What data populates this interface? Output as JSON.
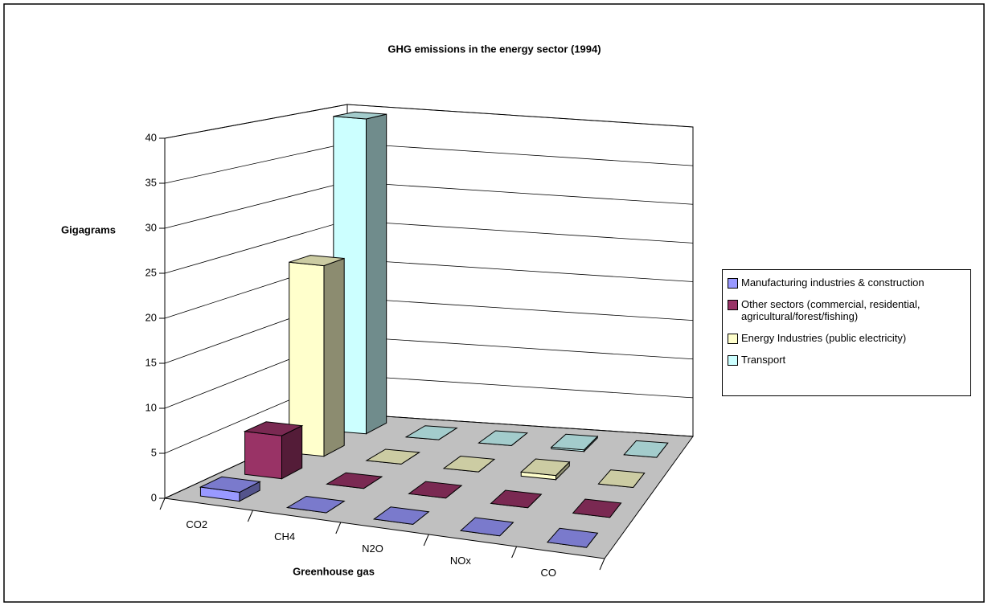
{
  "chart_data": {
    "type": "bar3d",
    "title": "GHG emissions in the energy sector (1994)",
    "y_label": "Gigagrams",
    "x_label": "Greenhouse gas",
    "categories": [
      "CO2",
      "CH4",
      "N2O",
      "NOx",
      "CO"
    ],
    "series": [
      {
        "name": "Manufacturing industries & construction",
        "color": "#9999ff",
        "values": [
          1,
          0,
          0,
          0,
          0
        ]
      },
      {
        "name": "Other sectors (commercial, residential, agricultural/forest/fishing)",
        "color": "#993366",
        "values": [
          5,
          0,
          0,
          0,
          0
        ]
      },
      {
        "name": "Energy Industries (public electricity)",
        "color": "#ffffcc",
        "values": [
          23,
          0,
          0,
          0.5,
          0
        ]
      },
      {
        "name": "Transport",
        "color": "#ccffff",
        "values": [
          39.5,
          0,
          0,
          0.2,
          0
        ]
      }
    ],
    "ylim": [
      0,
      40
    ],
    "yticks": [
      0,
      5,
      10,
      15,
      20,
      25,
      30,
      35,
      40
    ],
    "grid": true,
    "legend": "right"
  }
}
